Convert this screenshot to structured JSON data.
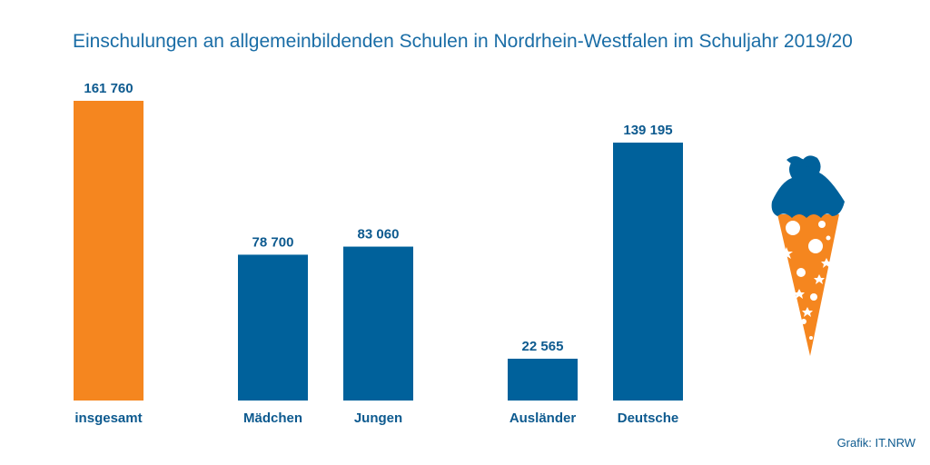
{
  "chart_data": {
    "type": "bar",
    "title": "Einschulungen an allgemeinbildenden Schulen in Nordrhein-Westfalen im Schuljahr 2019/20",
    "categories": [
      "insgesamt",
      "Mädchen",
      "Jungen",
      "Ausländer",
      "Deutsche"
    ],
    "values": [
      161760,
      78700,
      83060,
      22565,
      139195
    ],
    "value_labels": [
      "161 760",
      "78 700",
      "83 060",
      "22 565",
      "139 195"
    ],
    "groups": [
      [
        "insgesamt"
      ],
      [
        "Mädchen",
        "Jungen"
      ],
      [
        "Ausländer",
        "Deutsche"
      ]
    ],
    "ylim": [
      0,
      161760
    ],
    "grid": false,
    "legend": "none"
  },
  "source": "Grafik: IT.NRW",
  "colors": {
    "total": "#f5861f",
    "bar": "#00619b",
    "text": "#0d5a8f",
    "title": "#1a6da6"
  },
  "icons": {
    "decoration": "schultuete-icon"
  }
}
